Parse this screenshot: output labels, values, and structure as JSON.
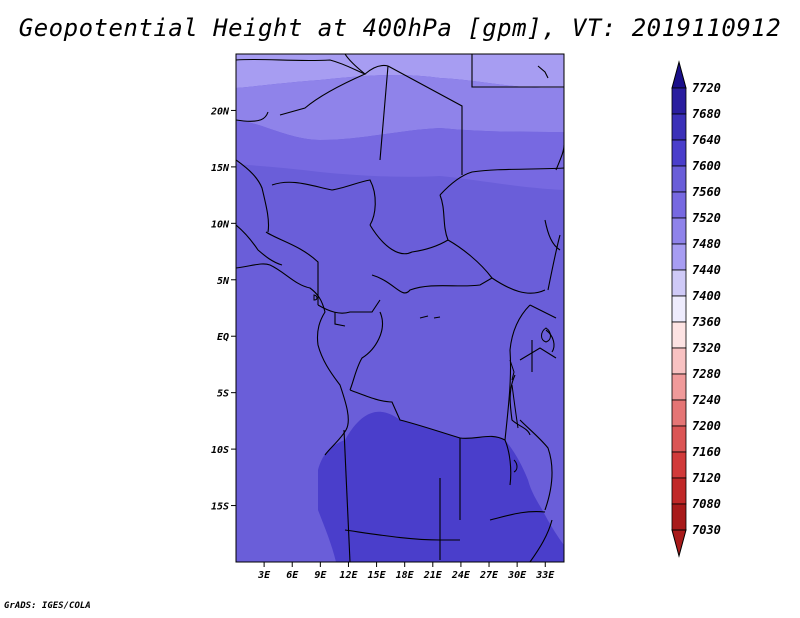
{
  "title": "Geopotential Height at 400hPa [gpm], VT: 2019110912",
  "footer": "GrADS: IGES/COLA",
  "map": {
    "projection": "latlon",
    "lon_range": [
      0,
      35
    ],
    "lat_range": [
      -20,
      25
    ],
    "lon_ticks": [
      {
        "value": 3,
        "label": "3E"
      },
      {
        "value": 6,
        "label": "6E"
      },
      {
        "value": 9,
        "label": "9E"
      },
      {
        "value": 12,
        "label": "12E"
      },
      {
        "value": 15,
        "label": "15E"
      },
      {
        "value": 18,
        "label": "18E"
      },
      {
        "value": 21,
        "label": "21E"
      },
      {
        "value": 24,
        "label": "24E"
      },
      {
        "value": 27,
        "label": "27E"
      },
      {
        "value": 30,
        "label": "30E"
      },
      {
        "value": 33,
        "label": "33E"
      }
    ],
    "lat_ticks": [
      {
        "value": 20,
        "label": "20N"
      },
      {
        "value": 15,
        "label": "15N"
      },
      {
        "value": 10,
        "label": "10N"
      },
      {
        "value": 5,
        "label": "5N"
      },
      {
        "value": 0,
        "label": "EQ"
      },
      {
        "value": -5,
        "label": "5S"
      },
      {
        "value": -10,
        "label": "10S"
      },
      {
        "value": -15,
        "label": "15S"
      }
    ],
    "background_color": "#6a5ed9",
    "bands": [
      {
        "value": 7480,
        "color": "#a79df2"
      },
      {
        "value": 7520,
        "color": "#8f83ea"
      },
      {
        "value": 7560,
        "color": "#7769e1"
      },
      {
        "value": 7600,
        "color": "#6a5ed9"
      },
      {
        "value": 7640,
        "color": "#4a3ecb"
      }
    ]
  },
  "colorbar": {
    "levels": [
      {
        "label": "7720",
        "color": "#1a0f8a"
      },
      {
        "label": "7680",
        "color": "#2a1e9f"
      },
      {
        "label": "7640",
        "color": "#3b30b8"
      },
      {
        "label": "7600",
        "color": "#4a3ecb"
      },
      {
        "label": "7560",
        "color": "#6a5ed9"
      },
      {
        "label": "7520",
        "color": "#7769e1"
      },
      {
        "label": "7480",
        "color": "#8f83ea"
      },
      {
        "label": "7440",
        "color": "#a79df2"
      },
      {
        "label": "7400",
        "color": "#cfcaf7"
      },
      {
        "label": "7360",
        "color": "#eeecfd"
      },
      {
        "label": "7320",
        "color": "#fde3e3"
      },
      {
        "label": "7280",
        "color": "#f8c2c2"
      },
      {
        "label": "7240",
        "color": "#f09a9a"
      },
      {
        "label": "7200",
        "color": "#e57575"
      },
      {
        "label": "7160",
        "color": "#db5555"
      },
      {
        "label": "7120",
        "color": "#d13a3a"
      },
      {
        "label": "7080",
        "color": "#c02828"
      },
      {
        "label": "7030",
        "color": "#a81a1a"
      }
    ],
    "bottom_color": "#a81a1a"
  }
}
